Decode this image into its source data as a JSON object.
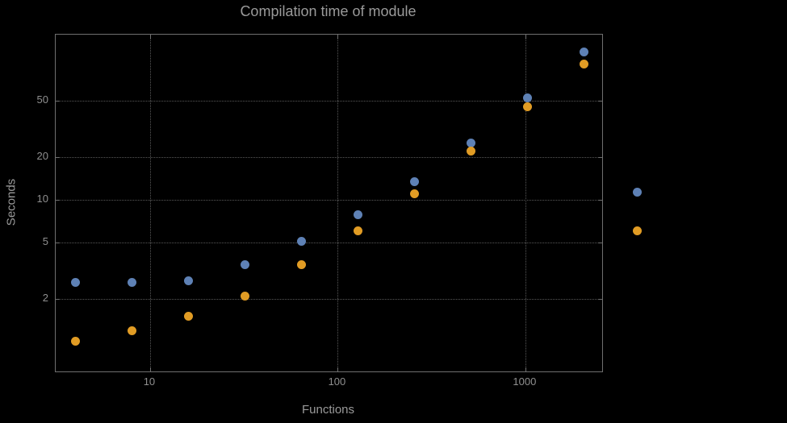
{
  "chart_data": {
    "type": "scatter",
    "title": "Compilation time of module",
    "xlabel": "Functions",
    "ylabel": "Seconds",
    "xscale": "log",
    "yscale": "log",
    "xlim": [
      3.14,
      2565
    ],
    "ylim": [
      0.616,
      146
    ],
    "grid": "dotted",
    "legend_position": "right",
    "legend_labels_visible": false,
    "xticks": {
      "values": [
        10,
        100,
        1000
      ],
      "labels": [
        "10",
        "100",
        "1000"
      ]
    },
    "yticks": {
      "values": [
        2,
        5,
        10,
        20,
        50
      ],
      "labels": [
        "2",
        "5",
        "10",
        "20",
        "50"
      ]
    },
    "series": [
      {
        "name": "series-1",
        "color": "#5e81b5",
        "x": [
          4,
          8,
          16,
          32,
          64,
          128,
          256,
          512,
          1024,
          2048
        ],
        "y": [
          2.6,
          2.6,
          2.7,
          3.5,
          5.1,
          7.8,
          13.4,
          25,
          52,
          110
        ]
      },
      {
        "name": "series-2",
        "color": "#e19c24",
        "x": [
          4,
          8,
          16,
          32,
          64,
          128,
          256,
          512,
          1024,
          2048
        ],
        "y": [
          1.0,
          1.2,
          1.5,
          2.1,
          3.5,
          6.0,
          11,
          22,
          45,
          90
        ]
      }
    ]
  },
  "colors": {
    "background": "#000000",
    "text": "#9a9a9a",
    "grid": "#585858",
    "frame": "#6f6f6f"
  }
}
